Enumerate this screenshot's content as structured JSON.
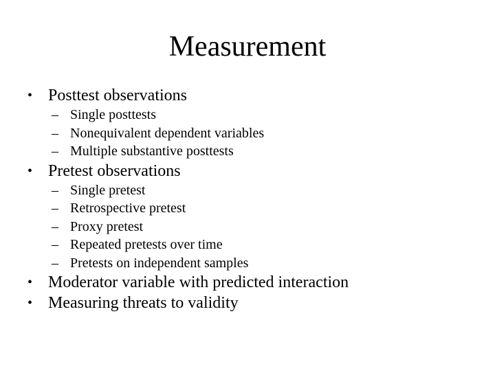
{
  "slide": {
    "title": "Measurement",
    "bullets": [
      {
        "text": "Posttest observations",
        "subitems": [
          "Single posttests",
          "Nonequivalent dependent variables",
          "Multiple substantive posttests"
        ]
      },
      {
        "text": "Pretest observations",
        "subitems": [
          "Single pretest",
          "Retrospective pretest",
          "Proxy pretest",
          "Repeated pretests over time",
          "Pretests on independent samples"
        ]
      },
      {
        "text": "Moderator variable with predicted interaction",
        "subitems": []
      },
      {
        "text": "Measuring threats to validity",
        "subitems": []
      }
    ],
    "bullet_glyph": "•",
    "dash_glyph": "–"
  }
}
